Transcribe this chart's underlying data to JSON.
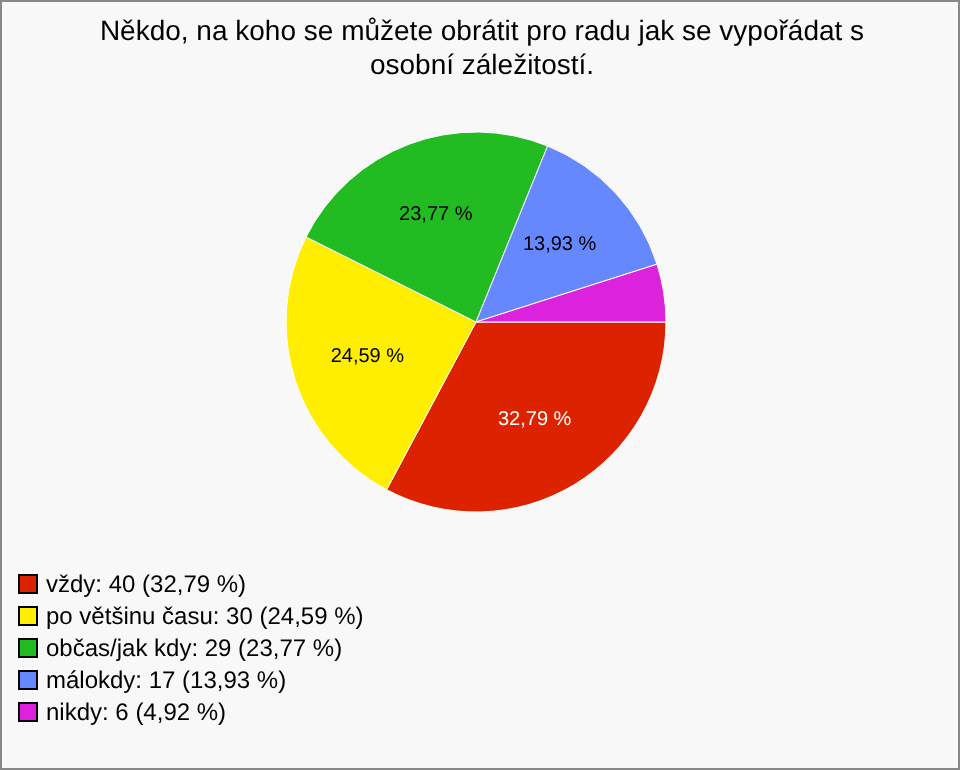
{
  "chart_data": {
    "type": "pie",
    "title": "Někdo, na koho se můžete obrátit pro radu jak se vypořádat s osobní záležitostí.",
    "categories": [
      "vždy: 40 (32,79 %)",
      "po většinu času: 30 (24,59 %)",
      "občas/jak kdy: 29 (23,77 %)",
      "málokdy: 17 (13,93 %)",
      "nikdy: 6 (4,92 %)"
    ],
    "values": [
      32.79,
      24.59,
      23.77,
      13.93,
      4.92
    ],
    "colors": [
      "#dd2200",
      "#ffee00",
      "#22bb22",
      "#6688ff",
      "#dd22dd"
    ],
    "value_labels": [
      "32,79 %",
      "24,59 %",
      "23,77 %",
      "13,93 %",
      null
    ],
    "legend": "bottom left"
  }
}
